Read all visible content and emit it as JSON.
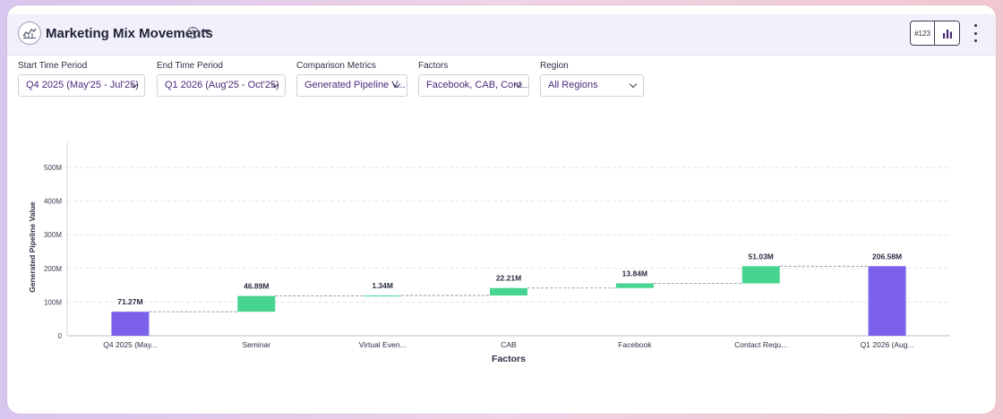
{
  "header": {
    "title": "Marketing Mix Movements",
    "number_toggle_label": "#123",
    "info_icon": "info-icon",
    "more_icon": "kebab-menu-icon"
  },
  "filters": [
    {
      "label": "Start Time Period",
      "value": "Q4 2025 (May'25 - Jul'25)"
    },
    {
      "label": "End Time Period",
      "value": "Q1 2026 (Aug'25 - Oct'25)"
    },
    {
      "label": "Comparison Metrics",
      "value": "Generated Pipeline V..."
    },
    {
      "label": "Factors",
      "value": "Facebook, CAB, Cont..."
    },
    {
      "label": "Region",
      "value": "All Regions"
    }
  ],
  "chart_data": {
    "type": "waterfall",
    "xlabel": "Factors",
    "ylabel": "Generated Pipeline Value",
    "ylim": [
      0,
      500
    ],
    "y_ticks": [
      "0",
      "100M",
      "200M",
      "300M",
      "400M",
      "500M"
    ],
    "grid": true,
    "categories": [
      "Q4 2025 (May...",
      "Seminar",
      "Virtual Even...",
      "CAB",
      "Facebook",
      "Contact Requ...",
      "Q1 2026 (Aug..."
    ],
    "labels": [
      "71.27M",
      "46.89M",
      "1.34M",
      "22.21M",
      "13.84M",
      "51.03M",
      "206.58M"
    ],
    "values": [
      71.27,
      46.89,
      1.34,
      22.21,
      13.84,
      51.03,
      206.58
    ],
    "kinds": [
      "total",
      "increase",
      "increase",
      "increase",
      "increase",
      "increase",
      "total"
    ],
    "colors": {
      "total": "#7b61ea",
      "increase": "#47d491",
      "connector": "#8a8a8a"
    }
  }
}
